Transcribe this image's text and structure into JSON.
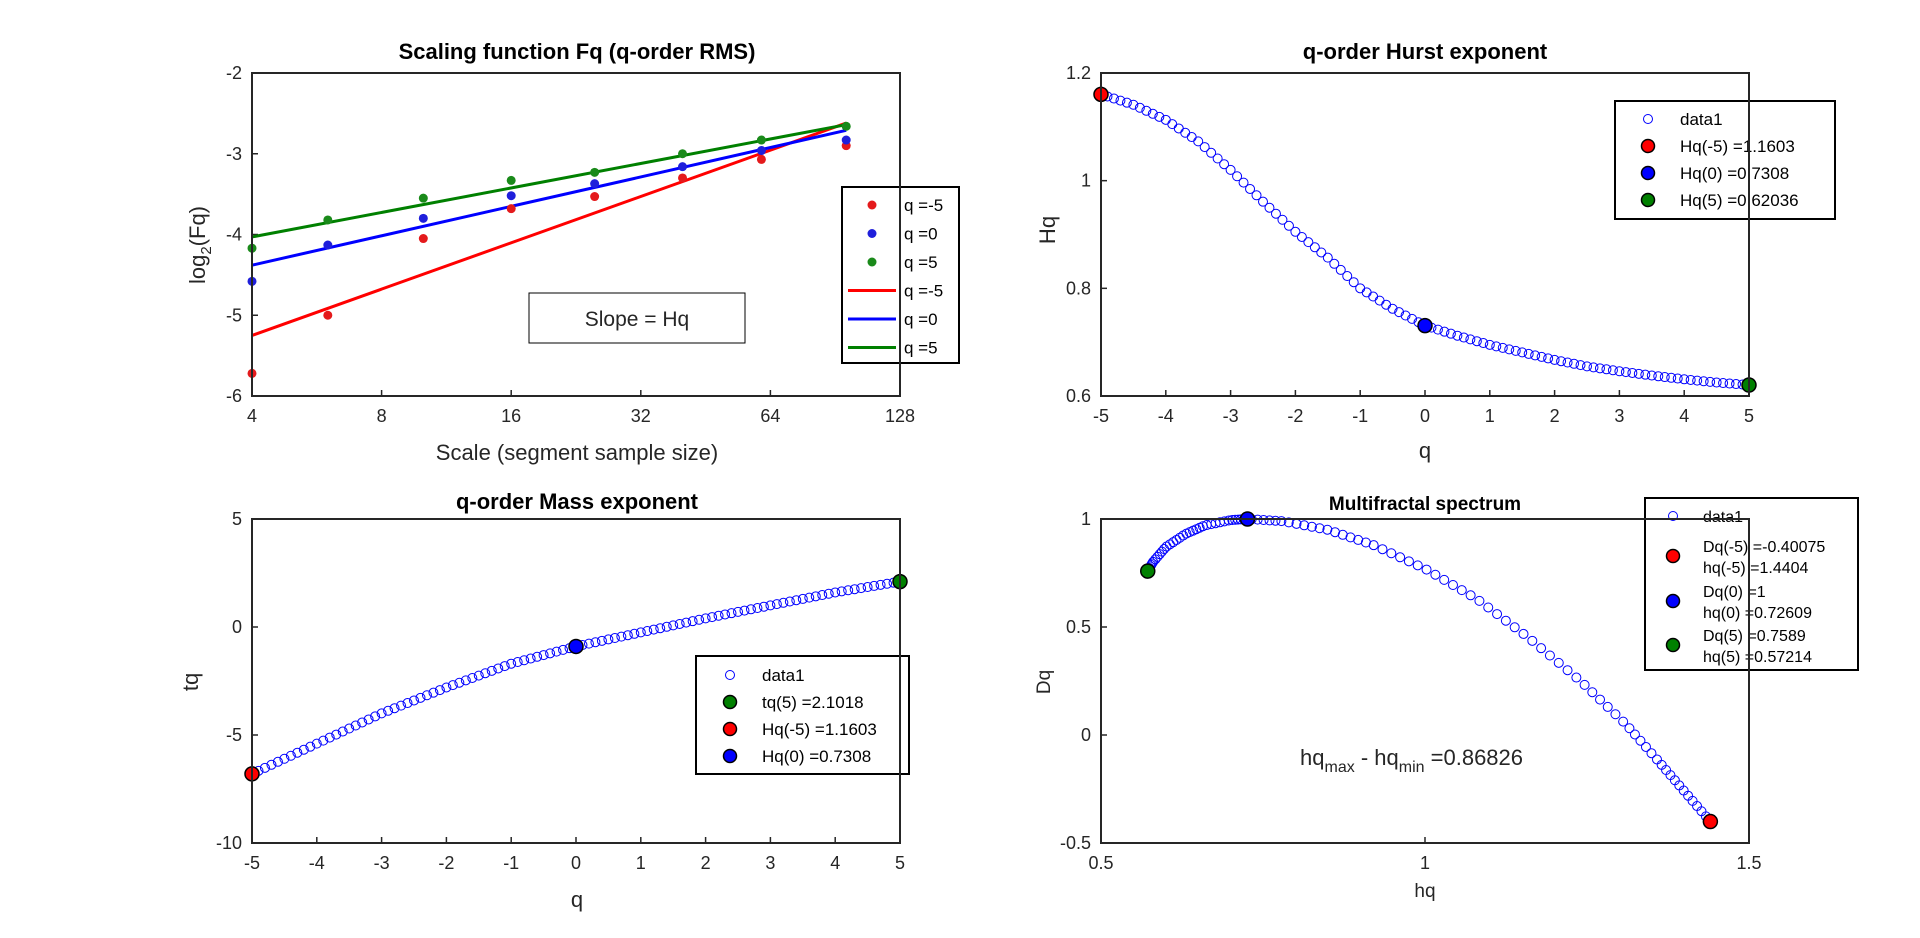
{
  "chart_data": [
    {
      "type": "scatter",
      "title": "Scaling function Fq (q-order RMS)",
      "xlabel": "Scale (segment sample size)",
      "ylabel": "log_2(Fq)",
      "ylabel_main": "log",
      "ylabel_sub": "2",
      "ylabel_tail": "(Fq)",
      "x_scale": "log2",
      "xlim": [
        4,
        128
      ],
      "ylim": [
        -6,
        -2
      ],
      "xticks": [
        4,
        8,
        16,
        32,
        64,
        128
      ],
      "xtick_labels": [
        "4",
        "8",
        "16",
        "32",
        "64",
        "128"
      ],
      "yticks": [
        -6,
        -5,
        -4,
        -3,
        -2
      ],
      "ytick_labels": [
        "-6",
        "-5",
        "-4",
        "-3",
        "-2"
      ],
      "scales": [
        4,
        6,
        10,
        16,
        25,
        40,
        61,
        96
      ],
      "series": [
        {
          "name": "q =-5",
          "kind": "points",
          "color": "#e41a1c",
          "values": [
            -5.72,
            -5.0,
            -4.05,
            -3.68,
            -3.53,
            -3.3,
            -3.07,
            -2.9
          ]
        },
        {
          "name": "q =0",
          "kind": "points",
          "color": "#1f1fdb",
          "values": [
            -4.58,
            -4.13,
            -3.8,
            -3.52,
            -3.37,
            -3.16,
            -2.96,
            -2.83
          ]
        },
        {
          "name": "q =5",
          "kind": "points",
          "color": "#1a8a1a",
          "values": [
            -4.17,
            -3.82,
            -3.55,
            -3.33,
            -3.23,
            -3.0,
            -2.83,
            -2.66
          ]
        },
        {
          "name": "q =-5",
          "kind": "line",
          "color": "#ff0000",
          "x": [
            4,
            96
          ],
          "values": [
            -5.25,
            -2.62
          ]
        },
        {
          "name": "q =0",
          "kind": "line",
          "color": "#0000ff",
          "x": [
            4,
            96
          ],
          "values": [
            -4.38,
            -2.71
          ]
        },
        {
          "name": "q =5",
          "kind": "line",
          "color": "#008000",
          "x": [
            4,
            96
          ],
          "values": [
            -4.03,
            -2.64
          ]
        }
      ],
      "annotation": "Slope = Hq",
      "legend_position": "right"
    },
    {
      "type": "scatter",
      "title": "q-order Hurst exponent",
      "xlabel": "q",
      "ylabel": "Hq",
      "xlim": [
        -5,
        5
      ],
      "ylim": [
        0.6,
        1.2
      ],
      "xticks": [
        -5,
        -4,
        -3,
        -2,
        -1,
        0,
        1,
        2,
        3,
        4,
        5
      ],
      "xtick_labels": [
        "-5",
        "-4",
        "-3",
        "-2",
        "-1",
        "0",
        "1",
        "2",
        "3",
        "4",
        "5"
      ],
      "yticks": [
        0.6,
        0.8,
        1.0,
        1.2
      ],
      "ytick_labels": [
        "0.6",
        "0.8",
        "1",
        "1.2"
      ],
      "curve_q": [
        -5,
        -4.5,
        -4,
        -3.5,
        -3,
        -2.5,
        -2,
        -1.5,
        -1,
        -0.5,
        0,
        0.5,
        1,
        1.5,
        2,
        2.5,
        3,
        3.5,
        4,
        4.5,
        5
      ],
      "curve_h": [
        1.1603,
        1.141,
        1.113,
        1.073,
        1.02,
        0.961,
        0.905,
        0.857,
        0.8,
        0.762,
        0.7308,
        0.712,
        0.695,
        0.681,
        0.667,
        0.655,
        0.646,
        0.638,
        0.631,
        0.625,
        0.62036
      ],
      "series": [
        {
          "name": "data1",
          "color": "#0000ff",
          "kind": "open-circles"
        },
        {
          "name": "Hq(-5) =1.1603",
          "color": "#ff0000",
          "kind": "marker",
          "x": -5,
          "y": 1.1603
        },
        {
          "name": "Hq(0) =0.7308",
          "color": "#0000ff",
          "kind": "marker",
          "x": 0,
          "y": 0.7308
        },
        {
          "name": "Hq(5) =0.62036",
          "color": "#008000",
          "kind": "marker",
          "x": 5,
          "y": 0.62036
        }
      ],
      "legend_position": "top-right"
    },
    {
      "type": "scatter",
      "title": "q-order Mass exponent",
      "xlabel": "q",
      "ylabel": "tq",
      "xlim": [
        -5,
        5
      ],
      "ylim": [
        -10,
        5
      ],
      "xticks": [
        -5,
        -4,
        -3,
        -2,
        -1,
        0,
        1,
        2,
        3,
        4,
        5
      ],
      "xtick_labels": [
        "-5",
        "-4",
        "-3",
        "-2",
        "-1",
        "0",
        "1",
        "2",
        "3",
        "4",
        "5"
      ],
      "yticks": [
        -10,
        -5,
        0,
        5
      ],
      "ytick_labels": [
        "-10",
        "-5",
        "0",
        "5"
      ],
      "curve_q": [
        -5,
        -4,
        -3,
        -2,
        -1,
        0,
        1,
        2,
        3,
        4,
        5
      ],
      "curve_t": [
        -6.8,
        -5.4,
        -4.0,
        -2.8,
        -1.7,
        -0.9,
        -0.25,
        0.4,
        1.0,
        1.6,
        2.1018
      ],
      "series": [
        {
          "name": "data1",
          "color": "#0000ff",
          "kind": "open-circles"
        },
        {
          "name": "tq(5) =2.1018",
          "color": "#008000",
          "kind": "marker",
          "x": 5,
          "y": 2.1018
        },
        {
          "name": "Hq(-5) =1.1603",
          "color": "#ff0000",
          "kind": "marker",
          "x": -5,
          "y": -6.8
        },
        {
          "name": "Hq(0) =0.7308",
          "color": "#0000ff",
          "kind": "marker",
          "x": 0,
          "y": -0.9
        }
      ],
      "legend_position": "bottom-right"
    },
    {
      "type": "scatter",
      "title": "Multifractal spectrum",
      "xlabel": "hq",
      "ylabel": "Dq",
      "xlim": [
        0.5,
        1.5
      ],
      "ylim": [
        -0.5,
        1
      ],
      "xticks": [
        0.5,
        1,
        1.5
      ],
      "xtick_labels": [
        "0.5",
        "1",
        "1.5"
      ],
      "yticks": [
        -0.5,
        0,
        0.5,
        1
      ],
      "ytick_labels": [
        "-0.5",
        "0",
        "0.5",
        "1"
      ],
      "curve_h": [
        0.57214,
        0.58,
        0.6,
        0.63,
        0.66,
        0.7,
        0.72609,
        0.78,
        0.85,
        0.92,
        1.0,
        1.08,
        1.16,
        1.24,
        1.31,
        1.36,
        1.4,
        1.4404
      ],
      "curve_d": [
        0.7589,
        0.8,
        0.87,
        0.93,
        0.97,
        0.995,
        1.0,
        0.99,
        0.95,
        0.88,
        0.77,
        0.63,
        0.45,
        0.25,
        0.05,
        -0.12,
        -0.26,
        -0.40075
      ],
      "series": [
        {
          "name": "data1",
          "color": "#0000ff",
          "kind": "open-circles"
        },
        {
          "name": "Dq(-5) =-0.40075",
          "name2": "hq(-5) =1.4404",
          "color": "#ff0000",
          "kind": "marker",
          "x": 1.4404,
          "y": -0.40075
        },
        {
          "name": "Dq(0) =1",
          "name2": "hq(0) =0.72609",
          "color": "#0000ff",
          "kind": "marker",
          "x": 0.72609,
          "y": 1
        },
        {
          "name": "Dq(5) =0.7589",
          "name2": "hq(5) =0.57214",
          "color": "#008000",
          "kind": "marker",
          "x": 0.57214,
          "y": 0.7589
        }
      ],
      "annotation_parts": [
        "hq",
        "max",
        " - hq",
        "min",
        " =0.86826"
      ],
      "legend_position": "top-right"
    }
  ]
}
